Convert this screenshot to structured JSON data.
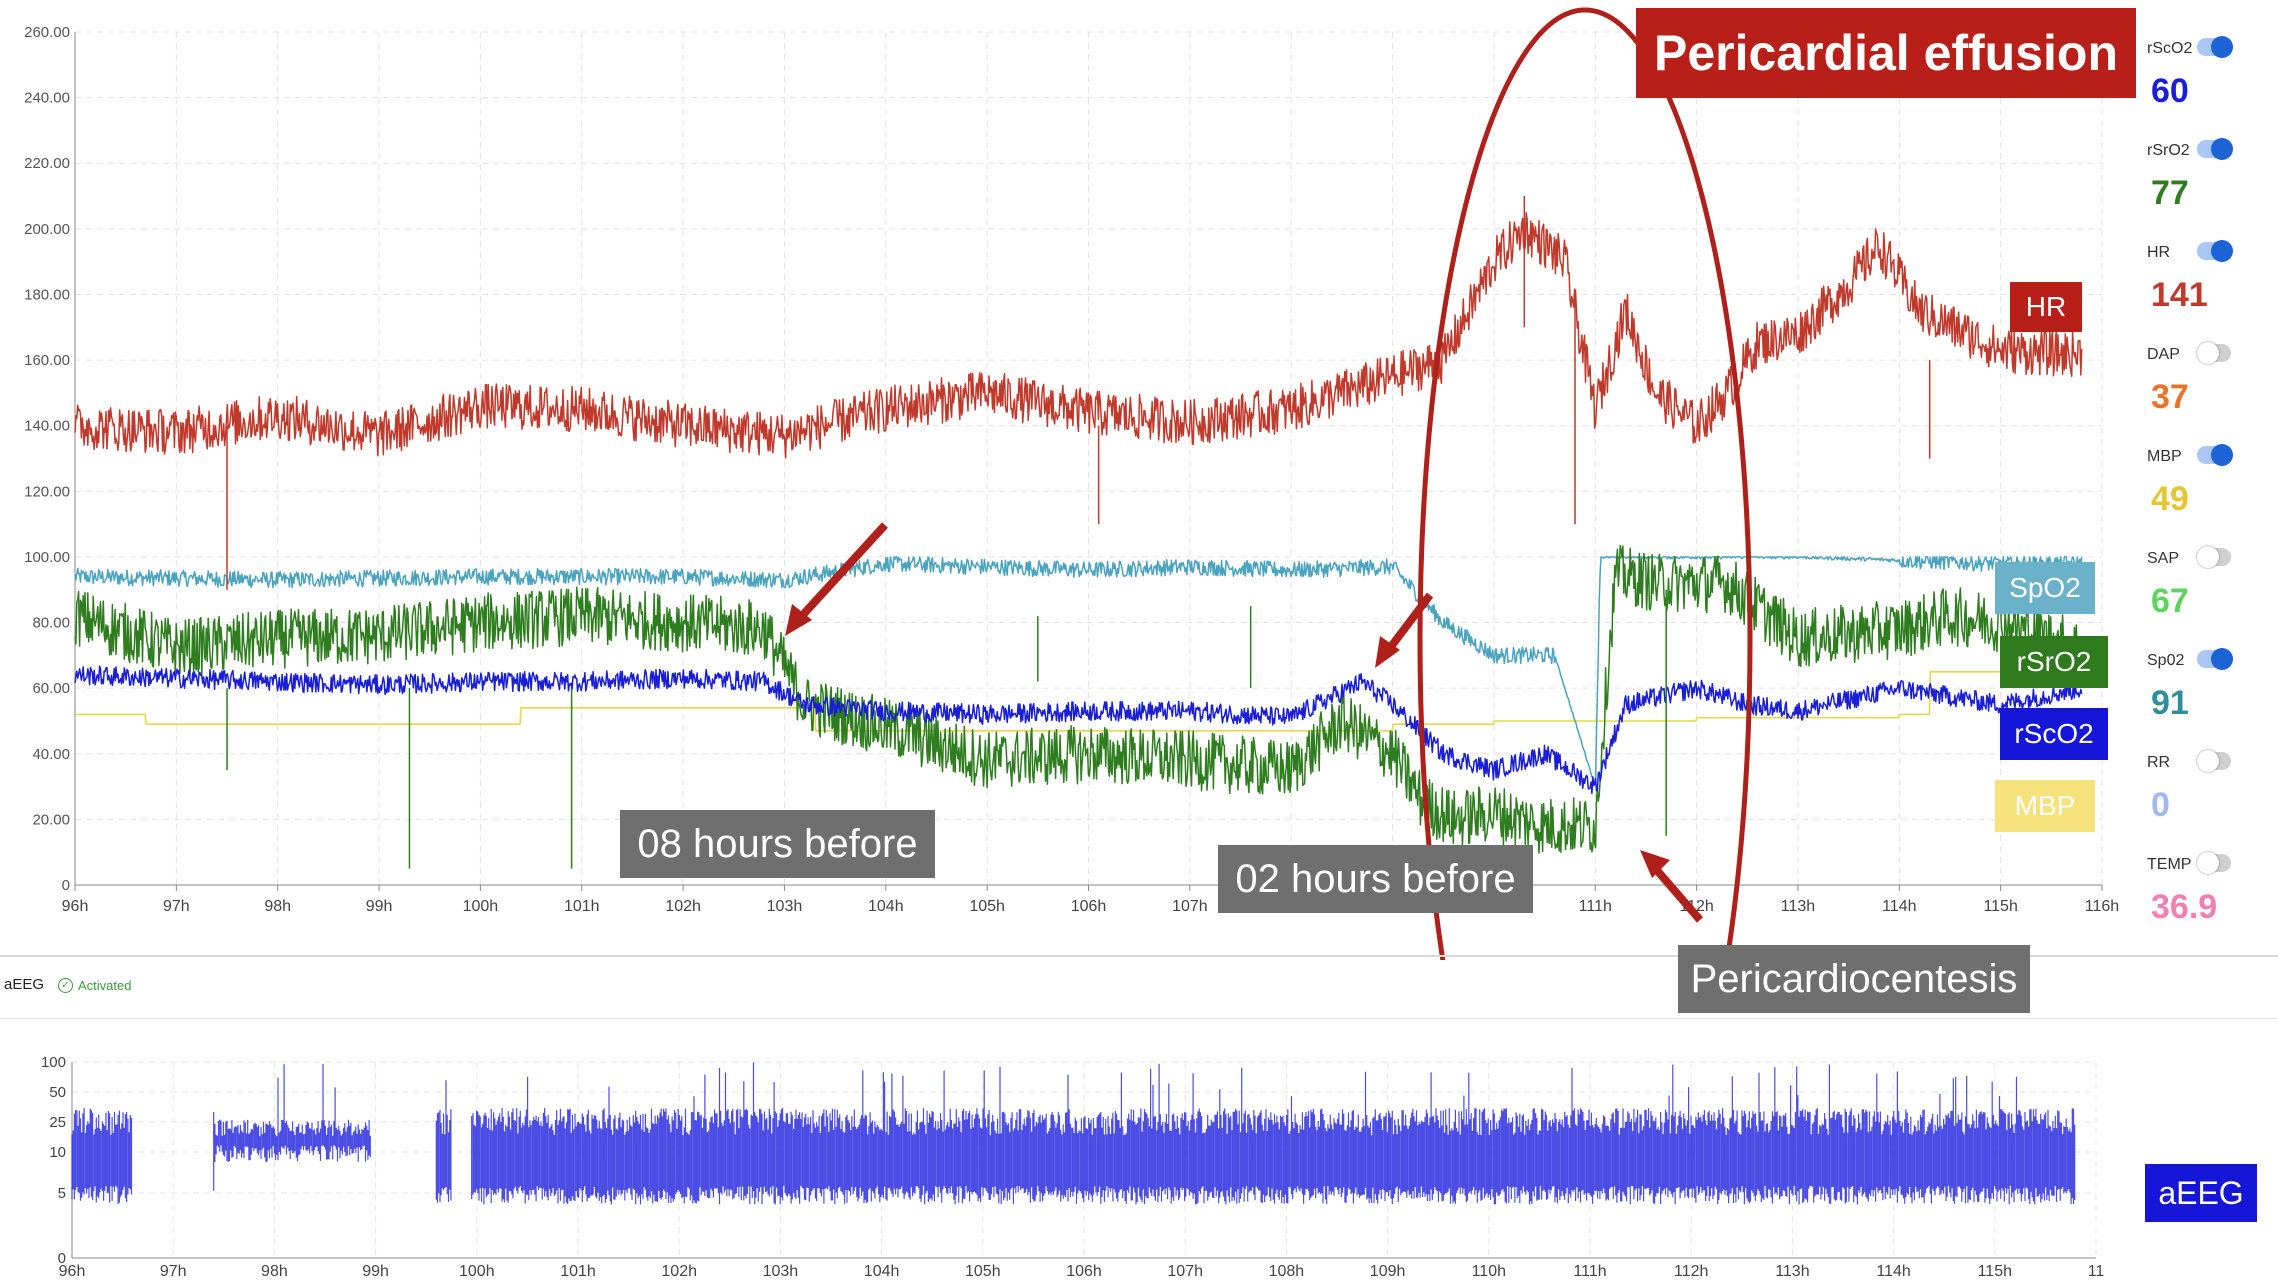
{
  "title": "Pericardial effusion",
  "trend": {
    "y_ticks": [
      "260.00",
      "240.00",
      "220.00",
      "200.00",
      "180.00",
      "160.00",
      "140.00",
      "120.00",
      "100.00",
      "80.00",
      "60.00",
      "40.00",
      "20.00",
      "0"
    ],
    "x_ticks": [
      "96h",
      "97h",
      "98h",
      "99h",
      "100h",
      "101h",
      "102h",
      "103h",
      "104h",
      "105h",
      "106h",
      "107h",
      "108h",
      "109h",
      "110h",
      "111h",
      "112h",
      "113h",
      "114h",
      "115h",
      "116h"
    ]
  },
  "aeeg": {
    "label": "aEEG",
    "status": "Activated",
    "y_ticks": [
      "100",
      "50",
      "25",
      "10",
      "5",
      "0"
    ],
    "x_ticks": [
      "96h",
      "97h",
      "98h",
      "99h",
      "100h",
      "101h",
      "102h",
      "103h",
      "104h",
      "105h",
      "106h",
      "107h",
      "108h",
      "109h",
      "110h",
      "111h",
      "112h",
      "113h",
      "114h",
      "115h",
      "11"
    ],
    "chip": "aEEG"
  },
  "chips": {
    "hr": "HR",
    "spo2": "SpO2",
    "rsro2": "rSrO2",
    "rsco2": "rScO2",
    "mbp": "MBP"
  },
  "annotations": {
    "h08": "08 hours before",
    "h02": "02 hours before",
    "pericardiocentesis": "Pericardiocentesis"
  },
  "sidebar": [
    {
      "label": "rScO2",
      "value": "60",
      "on": true,
      "color": "#1a1fd6"
    },
    {
      "label": "rSrO2",
      "value": "77",
      "on": true,
      "color": "#2e7d1e"
    },
    {
      "label": "HR",
      "value": "141",
      "on": true,
      "color": "#c0392b"
    },
    {
      "label": "DAP",
      "value": "37",
      "on": false,
      "color": "#e8742a"
    },
    {
      "label": "MBP",
      "value": "49",
      "on": true,
      "color": "#e6c62c"
    },
    {
      "label": "SAP",
      "value": "67",
      "on": false,
      "color": "#5fd35f"
    },
    {
      "label": "Sp02",
      "value": "91",
      "on": true,
      "color": "#2e8f9c"
    },
    {
      "label": "RR",
      "value": "0",
      "on": false,
      "color": "#9fb9f2"
    },
    {
      "label": "TEMP",
      "value": "36.9",
      "on": false,
      "color": "#f07fb3"
    }
  ],
  "chart_data": [
    {
      "type": "line",
      "x_unit": "h",
      "xlim": [
        96,
        116
      ],
      "ylim": [
        0,
        260
      ],
      "series": [
        {
          "name": "HR",
          "color": "#c0392b",
          "x": [
            96,
            97,
            98,
            99,
            100,
            101,
            102,
            103,
            104,
            105,
            106,
            107,
            108,
            109,
            109.5,
            110,
            110.3,
            110.7,
            111,
            111.3,
            111.6,
            112,
            112.3,
            112.6,
            113,
            113.5,
            113.8,
            114.2,
            115,
            115.5,
            115.8
          ],
          "values": [
            140,
            138,
            143,
            137,
            146,
            145,
            140,
            137,
            145,
            150,
            144,
            141,
            145,
            155,
            160,
            190,
            200,
            190,
            145,
            175,
            150,
            140,
            150,
            165,
            168,
            183,
            195,
            175,
            163,
            162,
            162
          ]
        },
        {
          "name": "SpO2",
          "color": "#4aa3bf",
          "x": [
            96,
            98,
            100,
            102,
            103,
            104,
            105,
            106,
            107,
            108,
            109,
            109.5,
            110,
            110.6,
            111,
            111.05,
            112,
            113,
            114,
            115,
            115.8
          ],
          "values": [
            94,
            93,
            94,
            94,
            93,
            98,
            97,
            96,
            97,
            96,
            97,
            80,
            70,
            70,
            30,
            100,
            100,
            100,
            99,
            98,
            98
          ]
        },
        {
          "name": "rSrO2",
          "color": "#2e7d1e",
          "x": [
            96,
            97,
            98,
            99,
            100,
            101,
            102,
            102.8,
            103.2,
            104,
            105,
            106,
            107,
            108,
            108.5,
            109,
            109.3,
            109.6,
            110,
            110.5,
            111,
            111.2,
            111.6,
            112.3,
            113,
            114,
            114.5,
            115,
            115.8
          ],
          "values": [
            82,
            72,
            75,
            76,
            80,
            82,
            80,
            78,
            55,
            48,
            38,
            40,
            38,
            35,
            50,
            40,
            25,
            20,
            22,
            18,
            18,
            95,
            92,
            92,
            75,
            78,
            82,
            80,
            72
          ]
        },
        {
          "name": "rScO2",
          "color": "#1a1fd6",
          "x": [
            96,
            97,
            98,
            99,
            100,
            101,
            102,
            102.8,
            103.2,
            104,
            105,
            106,
            107,
            108,
            108.7,
            109,
            109.5,
            110,
            110.5,
            111,
            111.3,
            112,
            112.5,
            113,
            114,
            115,
            115.8
          ],
          "values": [
            64,
            63,
            62,
            61,
            62,
            62,
            63,
            62,
            55,
            53,
            52,
            53,
            53,
            51,
            62,
            55,
            40,
            35,
            40,
            30,
            55,
            60,
            55,
            53,
            60,
            55,
            60
          ]
        },
        {
          "name": "MBP",
          "color": "#e6d84a",
          "x": [
            96,
            96.6,
            96.7,
            100.3,
            100.4,
            103.2,
            103.3,
            108.5,
            109,
            110,
            112,
            114,
            114.3,
            115.8
          ],
          "values": [
            52,
            52,
            49,
            49,
            54,
            54,
            47,
            47,
            49,
            50,
            51,
            52,
            65,
            65
          ]
        }
      ]
    },
    {
      "type": "area",
      "x_unit": "h",
      "xlim": [
        96,
        116
      ],
      "y_scale": "log",
      "ylim": [
        0,
        100
      ],
      "segments": [
        [
          96,
          96.6
        ],
        [
          97.4,
          98.95
        ],
        [
          99.6,
          99.75
        ],
        [
          99.95,
          115.8
        ]
      ],
      "band": {
        "lower": 4,
        "upper": 22
      }
    }
  ]
}
